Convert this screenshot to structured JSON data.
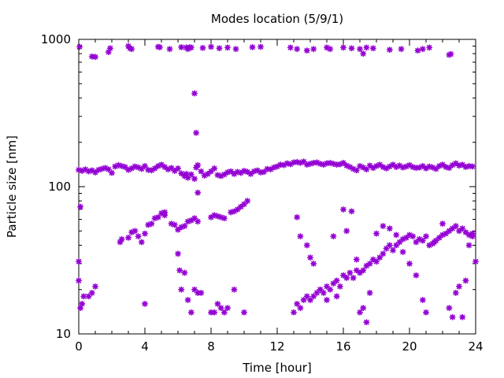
{
  "chart_data": {
    "type": "scatter",
    "title": "Modes location (5/9/1)",
    "xlabel": "Time [hour]",
    "ylabel": "Particle size [nm]",
    "xlim": [
      0,
      24
    ],
    "ylim": [
      10,
      1000
    ],
    "yscale": "log",
    "x_ticks": [
      0,
      4,
      8,
      12,
      16,
      20,
      24
    ],
    "y_ticks": [
      10,
      100,
      1000
    ],
    "grid": false,
    "legend": "none",
    "marker_color": "#9400d3",
    "series": [
      {
        "upper_mode": [
          [
            0.05,
            890
          ],
          [
            0.8,
            765
          ],
          [
            1.0,
            760
          ],
          [
            1.8,
            820
          ],
          [
            1.9,
            870
          ],
          [
            3.0,
            900
          ],
          [
            3.1,
            870
          ],
          [
            3.2,
            860
          ],
          [
            4.8,
            890
          ],
          [
            4.9,
            885
          ],
          [
            5.5,
            860
          ],
          [
            6.2,
            885
          ],
          [
            6.5,
            880
          ],
          [
            6.6,
            860
          ],
          [
            6.7,
            885
          ],
          [
            6.8,
            880
          ],
          [
            7.5,
            875
          ],
          [
            8.0,
            890
          ],
          [
            8.5,
            870
          ],
          [
            9.0,
            880
          ],
          [
            9.5,
            860
          ],
          [
            10.5,
            885
          ],
          [
            11.0,
            890
          ],
          [
            12.8,
            880
          ],
          [
            13.2,
            860
          ],
          [
            13.8,
            840
          ],
          [
            14.2,
            860
          ],
          [
            15.0,
            880
          ],
          [
            15.2,
            860
          ],
          [
            16.0,
            880
          ],
          [
            16.5,
            870
          ],
          [
            17.0,
            860
          ],
          [
            17.2,
            800
          ],
          [
            17.4,
            880
          ],
          [
            17.8,
            870
          ],
          [
            18.8,
            850
          ],
          [
            19.5,
            860
          ],
          [
            20.5,
            840
          ],
          [
            20.8,
            860
          ],
          [
            21.2,
            880
          ],
          [
            22.4,
            785
          ],
          [
            22.5,
            795
          ]
        ],
        "accumulation_mode": [
          [
            0.0,
            130
          ],
          [
            0.2,
            128
          ],
          [
            0.4,
            131
          ],
          [
            0.6,
            127
          ],
          [
            0.8,
            129
          ],
          [
            1.0,
            125
          ],
          [
            1.2,
            130
          ],
          [
            1.4,
            132
          ],
          [
            1.6,
            134
          ],
          [
            1.8,
            131
          ],
          [
            2.0,
            124
          ],
          [
            2.2,
            137
          ],
          [
            2.4,
            140
          ],
          [
            2.6,
            138
          ],
          [
            2.8,
            136
          ],
          [
            3.0,
            130
          ],
          [
            3.2,
            133
          ],
          [
            3.4,
            137
          ],
          [
            3.6,
            135
          ],
          [
            3.8,
            132
          ],
          [
            4.0,
            138
          ],
          [
            4.2,
            130
          ],
          [
            4.4,
            129
          ],
          [
            4.6,
            133
          ],
          [
            4.8,
            138
          ],
          [
            5.0,
            141
          ],
          [
            5.2,
            136
          ],
          [
            5.4,
            131
          ],
          [
            5.6,
            134
          ],
          [
            5.8,
            128
          ],
          [
            6.0,
            133
          ],
          [
            6.2,
            123
          ],
          [
            6.4,
            118
          ],
          [
            6.5,
            122
          ],
          [
            6.6,
            115
          ],
          [
            6.8,
            121
          ],
          [
            7.0,
            113
          ],
          [
            7.1,
            135
          ],
          [
            7.2,
            140
          ],
          [
            7.4,
            127
          ],
          [
            7.6,
            119
          ],
          [
            7.8,
            122
          ],
          [
            8.0,
            127
          ],
          [
            8.2,
            133
          ],
          [
            8.4,
            120
          ],
          [
            8.6,
            118
          ],
          [
            8.8,
            121
          ],
          [
            9.0,
            125
          ],
          [
            9.2,
            127
          ],
          [
            9.4,
            122
          ],
          [
            9.6,
            126
          ],
          [
            9.8,
            124
          ],
          [
            10.0,
            128
          ],
          [
            10.2,
            126
          ],
          [
            10.4,
            122
          ],
          [
            10.6,
            127
          ],
          [
            10.8,
            129
          ],
          [
            11.0,
            125
          ],
          [
            11.2,
            126
          ],
          [
            11.4,
            132
          ],
          [
            11.6,
            131
          ],
          [
            11.8,
            135
          ],
          [
            12.0,
            137
          ],
          [
            12.2,
            141
          ],
          [
            12.4,
            140
          ],
          [
            12.6,
            144
          ],
          [
            12.8,
            142
          ],
          [
            13.0,
            146
          ],
          [
            13.2,
            147
          ],
          [
            13.4,
            145
          ],
          [
            13.6,
            148
          ],
          [
            13.8,
            141
          ],
          [
            14.0,
            143
          ],
          [
            14.2,
            145
          ],
          [
            14.4,
            146
          ],
          [
            14.6,
            143
          ],
          [
            14.8,
            141
          ],
          [
            15.0,
            144
          ],
          [
            15.2,
            145
          ],
          [
            15.4,
            143
          ],
          [
            15.6,
            141
          ],
          [
            15.8,
            142
          ],
          [
            16.0,
            145
          ],
          [
            16.2,
            139
          ],
          [
            16.4,
            136
          ],
          [
            16.6,
            132
          ],
          [
            16.8,
            129
          ],
          [
            17.0,
            138
          ],
          [
            17.2,
            135
          ],
          [
            17.4,
            131
          ],
          [
            17.6,
            139
          ],
          [
            17.8,
            134
          ],
          [
            18.0,
            138
          ],
          [
            18.2,
            141
          ],
          [
            18.4,
            136
          ],
          [
            18.6,
            133
          ],
          [
            18.8,
            137
          ],
          [
            19.0,
            141
          ],
          [
            19.2,
            136
          ],
          [
            19.4,
            139
          ],
          [
            19.6,
            135
          ],
          [
            19.8,
            137
          ],
          [
            20.0,
            140
          ],
          [
            20.2,
            136
          ],
          [
            20.4,
            134
          ],
          [
            20.6,
            135
          ],
          [
            20.8,
            138
          ],
          [
            21.0,
            133
          ],
          [
            21.2,
            137
          ],
          [
            21.4,
            135
          ],
          [
            21.6,
            132
          ],
          [
            21.8,
            138
          ],
          [
            22.0,
            141
          ],
          [
            22.2,
            136
          ],
          [
            22.4,
            134
          ],
          [
            22.6,
            140
          ],
          [
            22.8,
            144
          ],
          [
            23.0,
            139
          ],
          [
            23.2,
            141
          ],
          [
            23.4,
            136
          ],
          [
            23.6,
            138
          ],
          [
            23.8,
            137
          ]
        ],
        "aitken_mode_rising": [
          [
            0.1,
            73
          ],
          [
            2.5,
            42
          ],
          [
            2.6,
            44
          ],
          [
            3.0,
            45
          ],
          [
            3.2,
            49
          ],
          [
            3.4,
            50
          ],
          [
            3.6,
            46
          ],
          [
            3.8,
            42
          ],
          [
            4.0,
            48
          ],
          [
            4.2,
            55
          ],
          [
            4.4,
            56
          ],
          [
            4.6,
            61
          ],
          [
            4.8,
            62
          ],
          [
            5.0,
            66
          ],
          [
            5.2,
            64
          ],
          [
            5.6,
            56
          ],
          [
            5.8,
            55
          ],
          [
            6.0,
            51
          ],
          [
            6.2,
            53
          ],
          [
            6.4,
            54
          ],
          [
            6.6,
            58
          ],
          [
            6.8,
            59
          ],
          [
            7.0,
            61
          ],
          [
            7.2,
            58
          ],
          [
            8.0,
            62
          ],
          [
            8.2,
            64
          ],
          [
            8.4,
            63
          ],
          [
            8.6,
            62
          ],
          [
            8.8,
            61
          ],
          [
            9.2,
            67
          ],
          [
            9.4,
            68
          ],
          [
            9.6,
            70
          ],
          [
            9.8,
            73
          ],
          [
            10.0,
            76
          ],
          [
            10.2,
            80
          ]
        ],
        "late_growth_mode": [
          [
            13.0,
            14
          ],
          [
            13.2,
            16
          ],
          [
            13.4,
            15
          ],
          [
            13.6,
            17
          ],
          [
            13.8,
            18
          ],
          [
            14.0,
            17
          ],
          [
            14.2,
            18
          ],
          [
            14.4,
            19
          ],
          [
            14.6,
            20
          ],
          [
            14.8,
            19
          ],
          [
            15.0,
            21
          ],
          [
            15.2,
            20
          ],
          [
            15.4,
            22
          ],
          [
            15.6,
            23
          ],
          [
            15.8,
            21
          ],
          [
            16.0,
            25
          ],
          [
            16.2,
            24
          ],
          [
            16.4,
            26
          ],
          [
            16.6,
            24
          ],
          [
            16.8,
            27
          ],
          [
            17.0,
            26
          ],
          [
            17.2,
            27
          ],
          [
            17.4,
            29
          ],
          [
            17.6,
            30
          ],
          [
            17.8,
            32
          ],
          [
            18.0,
            31
          ],
          [
            18.2,
            33
          ],
          [
            18.4,
            35
          ],
          [
            18.6,
            38
          ],
          [
            18.8,
            40
          ],
          [
            19.0,
            37
          ],
          [
            19.2,
            40
          ],
          [
            19.4,
            42
          ],
          [
            19.6,
            44
          ],
          [
            19.8,
            45
          ],
          [
            20.0,
            47
          ],
          [
            20.2,
            46
          ],
          [
            20.4,
            42
          ],
          [
            20.6,
            44
          ],
          [
            20.8,
            43
          ],
          [
            21.0,
            46
          ],
          [
            21.2,
            40
          ],
          [
            21.4,
            41
          ],
          [
            21.6,
            43
          ],
          [
            21.8,
            45
          ],
          [
            22.0,
            47
          ],
          [
            22.2,
            48
          ],
          [
            22.4,
            50
          ],
          [
            22.6,
            52
          ],
          [
            22.8,
            54
          ],
          [
            23.0,
            50
          ],
          [
            23.2,
            52
          ],
          [
            23.4,
            49
          ],
          [
            23.6,
            47
          ],
          [
            23.8,
            46
          ]
        ],
        "scattered_points": [
          [
            0.0,
            31
          ],
          [
            0.0,
            23
          ],
          [
            0.1,
            15
          ],
          [
            0.2,
            16
          ],
          [
            0.3,
            18
          ],
          [
            0.6,
            18
          ],
          [
            0.8,
            19
          ],
          [
            1.0,
            21
          ],
          [
            4.0,
            16
          ],
          [
            5.2,
            67
          ],
          [
            6.0,
            35
          ],
          [
            6.1,
            27
          ],
          [
            6.2,
            20
          ],
          [
            6.4,
            26
          ],
          [
            6.6,
            17
          ],
          [
            6.8,
            14
          ],
          [
            7.0,
            430
          ],
          [
            7.1,
            232
          ],
          [
            7.2,
            91
          ],
          [
            7.0,
            20
          ],
          [
            7.2,
            19
          ],
          [
            7.4,
            19
          ],
          [
            8.0,
            14
          ],
          [
            8.2,
            14
          ],
          [
            8.4,
            16
          ],
          [
            8.6,
            15
          ],
          [
            8.8,
            14
          ],
          [
            9.0,
            15
          ],
          [
            9.4,
            20
          ],
          [
            10.0,
            14
          ],
          [
            13.2,
            62
          ],
          [
            13.4,
            46
          ],
          [
            13.8,
            40
          ],
          [
            14.0,
            33
          ],
          [
            14.2,
            30
          ],
          [
            14.6,
            20
          ],
          [
            15.0,
            17
          ],
          [
            15.4,
            46
          ],
          [
            15.6,
            18
          ],
          [
            16.0,
            70
          ],
          [
            16.2,
            50
          ],
          [
            16.5,
            68
          ],
          [
            16.8,
            32
          ],
          [
            17.0,
            14
          ],
          [
            17.2,
            15
          ],
          [
            17.4,
            12
          ],
          [
            17.6,
            19
          ],
          [
            18.0,
            48
          ],
          [
            18.4,
            54
          ],
          [
            18.8,
            52
          ],
          [
            19.2,
            47
          ],
          [
            19.6,
            36
          ],
          [
            20.0,
            30
          ],
          [
            20.4,
            25
          ],
          [
            20.8,
            17
          ],
          [
            21.0,
            14
          ],
          [
            21.5,
            42
          ],
          [
            22.0,
            56
          ],
          [
            22.4,
            15
          ],
          [
            22.6,
            13
          ],
          [
            22.8,
            19
          ],
          [
            23.0,
            21
          ],
          [
            23.2,
            13
          ],
          [
            23.4,
            23
          ],
          [
            23.6,
            40
          ],
          [
            23.8,
            48
          ],
          [
            24.0,
            31
          ]
        ]
      }
    ]
  }
}
